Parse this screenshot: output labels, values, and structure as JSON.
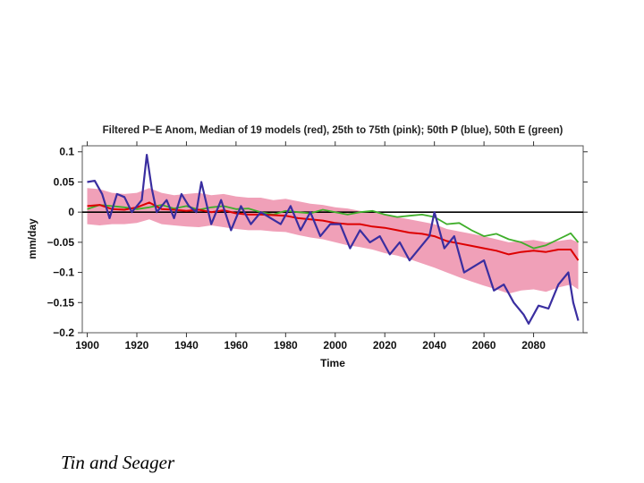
{
  "caption": "Tin and Seager",
  "chart_data": {
    "type": "line",
    "title": "Filtered P−E Anom, Median of 19 models (red), 25th to 75th (pink); 50th P (blue), 50th E (green)",
    "xlabel": "Time",
    "ylabel": "mm/day",
    "xlim": [
      1898,
      2100
    ],
    "ylim": [
      -0.2,
      0.11
    ],
    "x_ticks": [
      1900,
      1920,
      1940,
      1960,
      1980,
      2000,
      2020,
      2040,
      2060,
      2080
    ],
    "x_tick_labels": [
      "1900",
      "1920",
      "1940",
      "1960",
      "1980",
      "2000",
      "2020",
      "2040",
      "2060",
      "2080"
    ],
    "y_ticks": [
      0.1,
      0.05,
      0,
      -0.05,
      -0.1,
      -0.15,
      -0.2
    ],
    "y_tick_labels": [
      "0.1",
      "0.05",
      "0",
      "−0.05",
      "−0.1",
      "−0.15",
      "−0.2"
    ],
    "zero_line": 0,
    "colors": {
      "median": "#dd0000",
      "band": "#f0a0b8",
      "p50": "#3a2ea0",
      "e50": "#3fae2a",
      "zero": "#000000"
    },
    "band": {
      "name": "25th to 75th",
      "x": [
        1900,
        1905,
        1910,
        1915,
        1920,
        1925,
        1930,
        1935,
        1940,
        1945,
        1950,
        1955,
        1960,
        1965,
        1970,
        1975,
        1980,
        1985,
        1990,
        1995,
        2000,
        2005,
        2010,
        2015,
        2020,
        2025,
        2030,
        2035,
        2040,
        2045,
        2050,
        2055,
        2060,
        2065,
        2070,
        2075,
        2080,
        2085,
        2090,
        2095,
        2098
      ],
      "upper": [
        0.04,
        0.038,
        0.032,
        0.03,
        0.032,
        0.04,
        0.032,
        0.028,
        0.03,
        0.032,
        0.028,
        0.03,
        0.026,
        0.024,
        0.024,
        0.02,
        0.022,
        0.018,
        0.014,
        0.012,
        0.008,
        0.006,
        0.002,
        0.0,
        -0.004,
        -0.008,
        -0.012,
        -0.016,
        -0.02,
        -0.028,
        -0.032,
        -0.036,
        -0.04,
        -0.045,
        -0.05,
        -0.048,
        -0.046,
        -0.05,
        -0.048,
        -0.045,
        -0.05
      ],
      "lower": [
        -0.02,
        -0.022,
        -0.02,
        -0.02,
        -0.018,
        -0.012,
        -0.02,
        -0.022,
        -0.024,
        -0.025,
        -0.022,
        -0.025,
        -0.028,
        -0.03,
        -0.03,
        -0.032,
        -0.033,
        -0.038,
        -0.042,
        -0.045,
        -0.05,
        -0.055,
        -0.058,
        -0.062,
        -0.068,
        -0.072,
        -0.078,
        -0.085,
        -0.092,
        -0.1,
        -0.108,
        -0.115,
        -0.122,
        -0.128,
        -0.135,
        -0.13,
        -0.128,
        -0.132,
        -0.125,
        -0.12,
        -0.128
      ]
    },
    "series": [
      {
        "name": "Median of 19 models",
        "color": "red",
        "x": [
          1900,
          1905,
          1910,
          1915,
          1920,
          1925,
          1930,
          1935,
          1940,
          1945,
          1950,
          1955,
          1960,
          1965,
          1970,
          1975,
          1980,
          1985,
          1990,
          1995,
          2000,
          2005,
          2010,
          2015,
          2020,
          2025,
          2030,
          2035,
          2040,
          2045,
          2050,
          2055,
          2060,
          2065,
          2070,
          2075,
          2080,
          2085,
          2090,
          2095,
          2098
        ],
        "values": [
          0.01,
          0.012,
          0.005,
          0.004,
          0.008,
          0.016,
          0.005,
          0.004,
          0.002,
          0.004,
          0.0,
          0.003,
          -0.002,
          -0.004,
          -0.004,
          -0.005,
          -0.006,
          -0.01,
          -0.012,
          -0.014,
          -0.018,
          -0.02,
          -0.02,
          -0.024,
          -0.026,
          -0.03,
          -0.034,
          -0.036,
          -0.04,
          -0.048,
          -0.052,
          -0.056,
          -0.06,
          -0.064,
          -0.07,
          -0.066,
          -0.064,
          -0.066,
          -0.062,
          -0.062,
          -0.08
        ]
      },
      {
        "name": "50th P",
        "color": "blue",
        "x": [
          1900,
          1903,
          1906,
          1909,
          1912,
          1915,
          1918,
          1922,
          1924,
          1926,
          1928,
          1932,
          1935,
          1938,
          1941,
          1944,
          1946,
          1950,
          1954,
          1958,
          1962,
          1966,
          1970,
          1974,
          1978,
          1982,
          1986,
          1990,
          1994,
          1998,
          2002,
          2006,
          2010,
          2014,
          2018,
          2022,
          2026,
          2030,
          2034,
          2038,
          2040,
          2044,
          2048,
          2052,
          2056,
          2060,
          2064,
          2068,
          2072,
          2076,
          2078,
          2082,
          2086,
          2090,
          2094,
          2096,
          2098
        ],
        "values": [
          0.05,
          0.052,
          0.03,
          -0.01,
          0.03,
          0.025,
          0.0,
          0.02,
          0.095,
          0.04,
          0.0,
          0.02,
          -0.01,
          0.03,
          0.01,
          0.0,
          0.05,
          -0.02,
          0.02,
          -0.03,
          0.01,
          -0.02,
          0.0,
          -0.01,
          -0.02,
          0.01,
          -0.03,
          0.0,
          -0.04,
          -0.02,
          -0.02,
          -0.06,
          -0.03,
          -0.05,
          -0.04,
          -0.07,
          -0.05,
          -0.08,
          -0.06,
          -0.04,
          0.0,
          -0.06,
          -0.04,
          -0.1,
          -0.09,
          -0.08,
          -0.13,
          -0.12,
          -0.15,
          -0.17,
          -0.185,
          -0.155,
          -0.16,
          -0.12,
          -0.1,
          -0.15,
          -0.18
        ]
      },
      {
        "name": "50th E",
        "color": "green",
        "x": [
          1900,
          1905,
          1910,
          1915,
          1920,
          1925,
          1930,
          1935,
          1940,
          1945,
          1950,
          1955,
          1960,
          1965,
          1970,
          1975,
          1980,
          1985,
          1990,
          1995,
          2000,
          2005,
          2010,
          2015,
          2020,
          2025,
          2030,
          2035,
          2040,
          2045,
          2050,
          2055,
          2060,
          2065,
          2070,
          2075,
          2080,
          2085,
          2090,
          2095,
          2098
        ],
        "values": [
          0.005,
          0.012,
          0.01,
          0.008,
          0.005,
          0.008,
          0.012,
          0.006,
          0.01,
          0.004,
          0.008,
          0.01,
          0.005,
          0.006,
          0.0,
          -0.004,
          0.002,
          0.0,
          -0.002,
          0.004,
          0.0,
          -0.004,
          0.0,
          0.002,
          -0.004,
          -0.008,
          -0.006,
          -0.004,
          -0.008,
          -0.02,
          -0.018,
          -0.03,
          -0.04,
          -0.036,
          -0.045,
          -0.05,
          -0.06,
          -0.055,
          -0.045,
          -0.035,
          -0.05
        ]
      }
    ]
  }
}
